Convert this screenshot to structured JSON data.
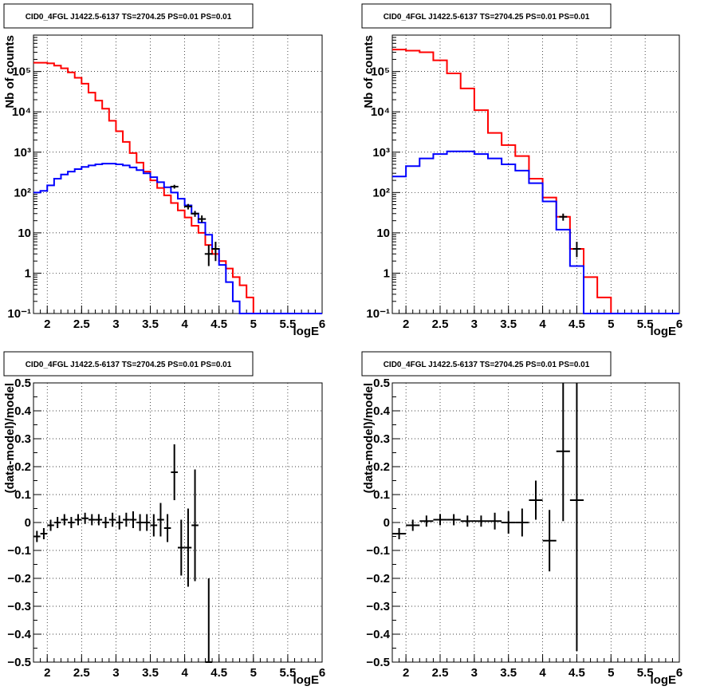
{
  "chart_data": [
    {
      "type": "line",
      "panel": "top-left",
      "title": "CID0_4FGL J1422.5-6137 TS=2704.25 PS=0.01 PS=0.01",
      "xlabel": "logE",
      "ylabel": "Nb of counts",
      "xlim": [
        1.8,
        6.0
      ],
      "ylim": [
        0.1,
        800000
      ],
      "log_y": true,
      "grid": true,
      "x_ticks": [
        {
          "v": 2,
          "label": "2"
        },
        {
          "v": 2.5,
          "label": "2.5"
        },
        {
          "v": 3,
          "label": "3"
        },
        {
          "v": 3.5,
          "label": "3.5"
        },
        {
          "v": 4,
          "label": "4"
        },
        {
          "v": 4.5,
          "label": "4.5"
        },
        {
          "v": 5,
          "label": "5"
        },
        {
          "v": 5.5,
          "label": "5.5"
        },
        {
          "v": 6,
          "label": "6"
        }
      ],
      "y_ticks": [
        {
          "v": 0.1,
          "label": "10⁻¹"
        },
        {
          "v": 1,
          "label": "1"
        },
        {
          "v": 10,
          "label": "10"
        },
        {
          "v": 100,
          "label": "10²"
        },
        {
          "v": 1000,
          "label": "10³"
        },
        {
          "v": 10000,
          "label": "10⁴"
        },
        {
          "v": 100000,
          "label": "10⁵"
        }
      ],
      "series": [
        {
          "color": "#ff0000",
          "x": [
            1.8,
            1.9,
            2.0,
            2.1,
            2.2,
            2.3,
            2.4,
            2.5,
            2.6,
            2.7,
            2.8,
            2.9,
            3.0,
            3.1,
            3.2,
            3.3,
            3.4,
            3.5,
            3.6,
            3.7,
            3.8,
            3.9,
            4.0,
            4.1,
            4.2,
            4.3,
            4.4,
            4.5,
            4.6,
            4.7,
            4.8,
            4.9,
            5.0,
            5.1,
            5.2,
            5.3,
            5.4,
            5.5,
            5.6,
            5.7,
            5.8,
            5.9,
            6.0
          ],
          "values": [
            165000,
            165000,
            160000,
            140000,
            120000,
            95000,
            70000,
            50000,
            30000,
            19000,
            12000,
            6000,
            3300,
            1800,
            950,
            550,
            330,
            200,
            130,
            85,
            55,
            36,
            24,
            15,
            10,
            5,
            3,
            2,
            1.3,
            0.8,
            0.5,
            0.25,
            0.1,
            0.1,
            0.1,
            0.1,
            0.1,
            0.1,
            0.1,
            0.1,
            0.1,
            0.1,
            0.1
          ]
        },
        {
          "color": "#0000ff",
          "x": [
            1.8,
            1.9,
            2.0,
            2.1,
            2.2,
            2.3,
            2.4,
            2.5,
            2.6,
            2.7,
            2.8,
            2.9,
            3.0,
            3.1,
            3.2,
            3.3,
            3.4,
            3.5,
            3.6,
            3.7,
            3.8,
            3.9,
            4.0,
            4.1,
            4.2,
            4.3,
            4.4,
            4.5,
            4.6,
            4.7,
            4.8,
            4.9,
            5.0,
            5.1,
            5.2,
            5.3,
            5.4,
            5.5,
            5.6,
            5.7,
            5.8,
            5.9,
            6.0
          ],
          "values": [
            100,
            110,
            150,
            220,
            280,
            330,
            380,
            430,
            470,
            500,
            520,
            520,
            500,
            470,
            420,
            360,
            300,
            240,
            180,
            135,
            100,
            70,
            48,
            30,
            18,
            9,
            4,
            1.6,
            0.6,
            0.2,
            0.1,
            0.1,
            0.1,
            0.1,
            0.1,
            0.1,
            0.1,
            0.1,
            0.1,
            0.1,
            0.1,
            0.1,
            0.1
          ]
        }
      ],
      "data_points": [
        {
          "x": 3.85,
          "y": 140,
          "ylo": 125,
          "yhi": 155
        },
        {
          "x": 4.05,
          "y": 45,
          "ylo": 38,
          "yhi": 52
        },
        {
          "x": 4.15,
          "y": 30,
          "ylo": 25,
          "yhi": 35
        },
        {
          "x": 4.25,
          "y": 22,
          "ylo": 18,
          "yhi": 27
        },
        {
          "x": 4.35,
          "y": 3,
          "ylo": 1.5,
          "yhi": 5
        },
        {
          "x": 4.45,
          "y": 4,
          "ylo": 2,
          "yhi": 6
        }
      ]
    },
    {
      "type": "line",
      "panel": "top-right",
      "title": "CID0_4FGL J1422.5-6137 TS=2704.25 PS=0.01 PS=0.01",
      "xlabel": "logE",
      "ylabel": "Nb of counts",
      "xlim": [
        1.8,
        6.0
      ],
      "ylim": [
        0.1,
        800000
      ],
      "log_y": true,
      "grid": true,
      "x_ticks": [
        {
          "v": 2,
          "label": "2"
        },
        {
          "v": 2.5,
          "label": "2.5"
        },
        {
          "v": 3,
          "label": "3"
        },
        {
          "v": 3.5,
          "label": "3.5"
        },
        {
          "v": 4,
          "label": "4"
        },
        {
          "v": 4.5,
          "label": "4.5"
        },
        {
          "v": 5,
          "label": "5"
        },
        {
          "v": 5.5,
          "label": "5.5"
        },
        {
          "v": 6,
          "label": "6"
        }
      ],
      "y_ticks": [
        {
          "v": 0.1,
          "label": "10⁻¹"
        },
        {
          "v": 1,
          "label": "1"
        },
        {
          "v": 10,
          "label": "10"
        },
        {
          "v": 100,
          "label": "10²"
        },
        {
          "v": 1000,
          "label": "10³"
        },
        {
          "v": 10000,
          "label": "10⁴"
        },
        {
          "v": 100000,
          "label": "10⁵"
        }
      ],
      "series": [
        {
          "color": "#ff0000",
          "x": [
            1.8,
            2.0,
            2.2,
            2.4,
            2.6,
            2.8,
            3.0,
            3.2,
            3.4,
            3.6,
            3.8,
            4.0,
            4.2,
            4.4,
            4.6,
            4.8,
            5.0,
            5.2,
            5.4,
            5.6,
            5.8,
            6.0
          ],
          "values": [
            350000,
            330000,
            300000,
            190000,
            90000,
            38000,
            11000,
            3000,
            1500,
            800,
            220,
            75,
            25,
            4,
            0.8,
            0.25,
            0.1,
            0.1,
            0.1,
            0.1,
            0.1,
            0.1
          ]
        },
        {
          "color": "#0000ff",
          "x": [
            1.8,
            2.0,
            2.2,
            2.4,
            2.6,
            2.8,
            3.0,
            3.2,
            3.4,
            3.6,
            3.8,
            4.0,
            4.2,
            4.4,
            4.6,
            4.8,
            5.0,
            5.2,
            5.4,
            5.6,
            5.8,
            6.0
          ],
          "values": [
            250,
            450,
            700,
            900,
            1050,
            1050,
            900,
            700,
            500,
            350,
            170,
            60,
            12,
            1.5,
            0.1,
            0.1,
            0.1,
            0.1,
            0.1,
            0.1,
            0.1,
            0.1
          ]
        }
      ],
      "data_points": [
        {
          "x": 4.3,
          "y": 25,
          "ylo": 20,
          "yhi": 30
        },
        {
          "x": 4.5,
          "y": 4,
          "ylo": 2.5,
          "yhi": 6
        }
      ]
    },
    {
      "type": "scatter",
      "panel": "bottom-left",
      "title": "CID0_4FGL J1422.5-6137 TS=2704.25 PS=0.01 PS=0.01",
      "xlabel": "logE",
      "ylabel": "(data-model)/model",
      "xlim": [
        1.8,
        6.0
      ],
      "ylim": [
        -0.5,
        0.5
      ],
      "grid": true,
      "x_ticks": [
        {
          "v": 2,
          "label": "2"
        },
        {
          "v": 2.5,
          "label": "2.5"
        },
        {
          "v": 3,
          "label": "3"
        },
        {
          "v": 3.5,
          "label": "3.5"
        },
        {
          "v": 4,
          "label": "4"
        },
        {
          "v": 4.5,
          "label": "4.5"
        },
        {
          "v": 5,
          "label": "5"
        },
        {
          "v": 5.5,
          "label": "5.5"
        },
        {
          "v": 6,
          "label": "6"
        }
      ],
      "y_ticks": [
        {
          "v": -0.5,
          "label": "−0.5"
        },
        {
          "v": -0.4,
          "label": "−0.4"
        },
        {
          "v": -0.3,
          "label": "−0.3"
        },
        {
          "v": -0.2,
          "label": "−0.2"
        },
        {
          "v": -0.1,
          "label": "−0.1"
        },
        {
          "v": 0,
          "label": "0"
        },
        {
          "v": 0.1,
          "label": "0.1"
        },
        {
          "v": 0.2,
          "label": "0.2"
        },
        {
          "v": 0.3,
          "label": "0.3"
        },
        {
          "v": 0.4,
          "label": "0.4"
        },
        {
          "v": 0.5,
          "label": "0.5"
        }
      ],
      "x_halfwidth": 0.05,
      "points": [
        {
          "x": 1.85,
          "y": -0.05,
          "err": 0.02
        },
        {
          "x": 1.95,
          "y": -0.04,
          "err": 0.02
        },
        {
          "x": 2.05,
          "y": -0.01,
          "err": 0.02
        },
        {
          "x": 2.15,
          "y": 0.0,
          "err": 0.02
        },
        {
          "x": 2.25,
          "y": 0.01,
          "err": 0.02
        },
        {
          "x": 2.35,
          "y": 0.0,
          "err": 0.02
        },
        {
          "x": 2.45,
          "y": 0.01,
          "err": 0.02
        },
        {
          "x": 2.55,
          "y": 0.015,
          "err": 0.02
        },
        {
          "x": 2.65,
          "y": 0.01,
          "err": 0.02
        },
        {
          "x": 2.75,
          "y": 0.01,
          "err": 0.02
        },
        {
          "x": 2.85,
          "y": 0.0,
          "err": 0.02
        },
        {
          "x": 2.95,
          "y": 0.01,
          "err": 0.025
        },
        {
          "x": 3.05,
          "y": 0.0,
          "err": 0.025
        },
        {
          "x": 3.15,
          "y": 0.01,
          "err": 0.025
        },
        {
          "x": 3.25,
          "y": 0.01,
          "err": 0.03
        },
        {
          "x": 3.35,
          "y": 0.0,
          "err": 0.03
        },
        {
          "x": 3.45,
          "y": 0.0,
          "err": 0.03
        },
        {
          "x": 3.55,
          "y": -0.01,
          "err": 0.04
        },
        {
          "x": 3.65,
          "y": 0.01,
          "err": 0.06
        },
        {
          "x": 3.75,
          "y": -0.02,
          "err": 0.05
        },
        {
          "x": 3.85,
          "y": 0.18,
          "err": 0.1
        },
        {
          "x": 3.95,
          "y": -0.09,
          "err": 0.1
        },
        {
          "x": 4.05,
          "y": -0.09,
          "err": 0.14
        },
        {
          "x": 4.15,
          "y": -0.01,
          "err": 0.2
        },
        {
          "x": 4.35,
          "y": -0.5,
          "err": 0.3
        }
      ]
    },
    {
      "type": "scatter",
      "panel": "bottom-right",
      "title": "CID0_4FGL J1422.5-6137 TS=2704.25 PS=0.01 PS=0.01",
      "xlabel": "logE",
      "ylabel": "(data-model)/model",
      "xlim": [
        1.8,
        6.0
      ],
      "ylim": [
        -0.5,
        0.5
      ],
      "grid": true,
      "x_ticks": [
        {
          "v": 2,
          "label": "2"
        },
        {
          "v": 2.5,
          "label": "2.5"
        },
        {
          "v": 3,
          "label": "3"
        },
        {
          "v": 3.5,
          "label": "3.5"
        },
        {
          "v": 4,
          "label": "4"
        },
        {
          "v": 4.5,
          "label": "4.5"
        },
        {
          "v": 5,
          "label": "5"
        },
        {
          "v": 5.5,
          "label": "5.5"
        },
        {
          "v": 6,
          "label": "6"
        }
      ],
      "y_ticks": [
        {
          "v": -0.5,
          "label": "−0.5"
        },
        {
          "v": -0.4,
          "label": "−0.4"
        },
        {
          "v": -0.3,
          "label": "−0.3"
        },
        {
          "v": -0.2,
          "label": "−0.2"
        },
        {
          "v": -0.1,
          "label": "−0.1"
        },
        {
          "v": 0,
          "label": "0"
        },
        {
          "v": 0.1,
          "label": "0.1"
        },
        {
          "v": 0.2,
          "label": "0.2"
        },
        {
          "v": 0.3,
          "label": "0.3"
        },
        {
          "v": 0.4,
          "label": "0.4"
        },
        {
          "v": 0.5,
          "label": "0.5"
        }
      ],
      "x_halfwidth": 0.1,
      "points": [
        {
          "x": 1.9,
          "y": -0.04,
          "err": 0.02
        },
        {
          "x": 2.1,
          "y": -0.01,
          "err": 0.02
        },
        {
          "x": 2.3,
          "y": 0.005,
          "err": 0.02
        },
        {
          "x": 2.5,
          "y": 0.01,
          "err": 0.02
        },
        {
          "x": 2.7,
          "y": 0.01,
          "err": 0.02
        },
        {
          "x": 2.9,
          "y": 0.005,
          "err": 0.02
        },
        {
          "x": 3.1,
          "y": 0.005,
          "err": 0.02
        },
        {
          "x": 3.3,
          "y": 0.005,
          "err": 0.03
        },
        {
          "x": 3.5,
          "y": 0.0,
          "err": 0.04
        },
        {
          "x": 3.7,
          "y": 0.0,
          "err": 0.05
        },
        {
          "x": 3.9,
          "y": 0.08,
          "err": 0.07
        },
        {
          "x": 4.1,
          "y": -0.065,
          "err": 0.11
        },
        {
          "x": 4.3,
          "y": 0.255,
          "err": 0.25
        },
        {
          "x": 4.5,
          "y": 0.08,
          "err": 0.54
        }
      ]
    }
  ]
}
